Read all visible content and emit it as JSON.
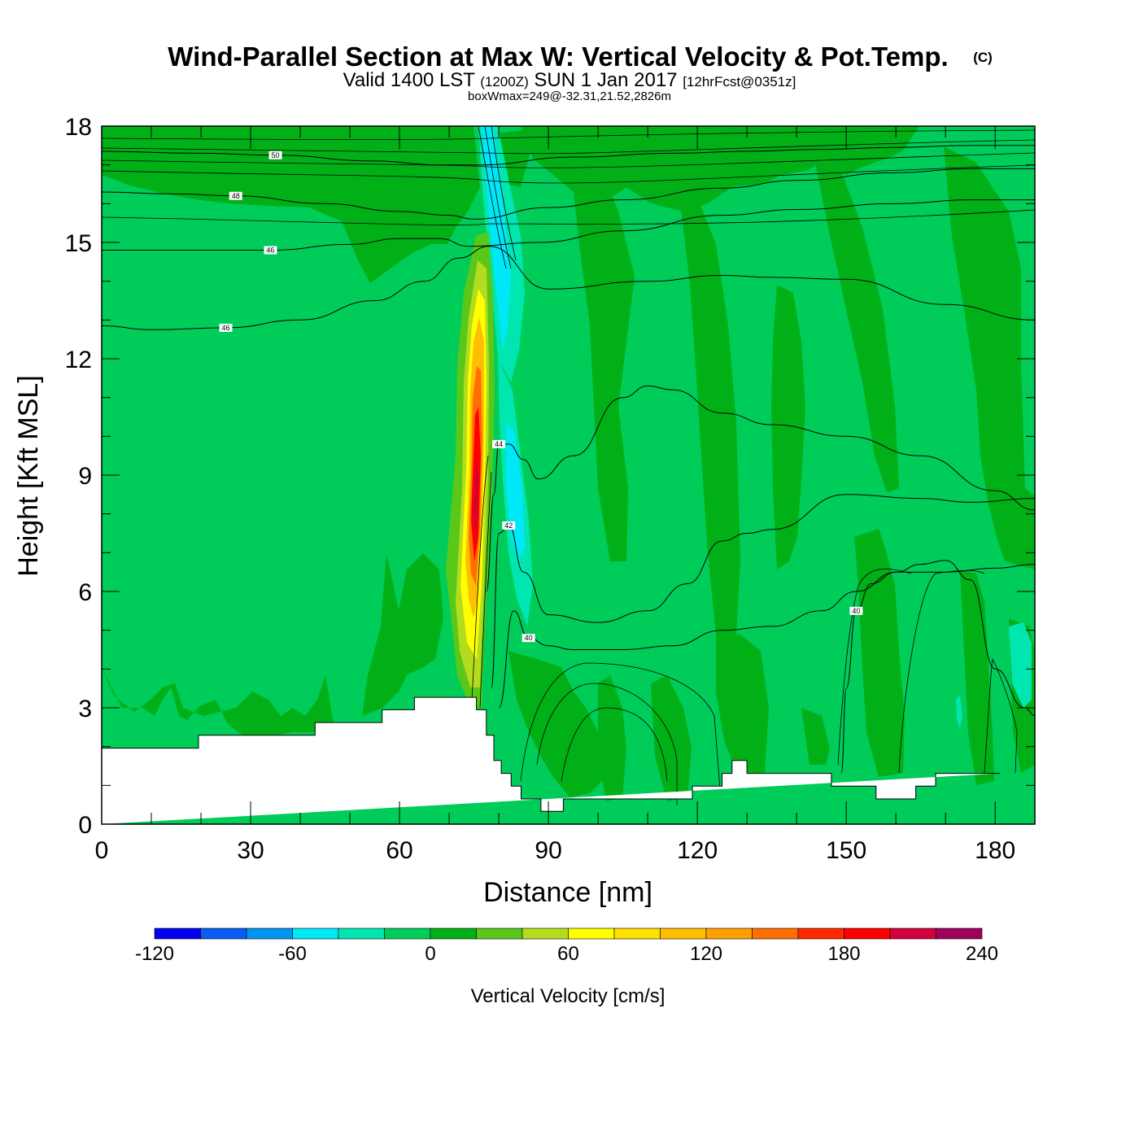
{
  "header": {
    "title": "Wind-Parallel Section at Max W: Vertical Velocity & Pot.Temp.",
    "copyright": "(C)",
    "valid_prefix": "Valid 1400 LST",
    "valid_utc": "(1200Z)",
    "valid_date": "SUN 1 Jan 2017",
    "forecast": "[12hrFcst@0351z]",
    "boxwmax": "boxWmax=249@-32.31,21.52,2826m"
  },
  "chart_data": {
    "type": "contour-cross-section",
    "xlabel": "Distance [nm]",
    "ylabel": "Height [Kft MSL]",
    "xlim": [
      0,
      188
    ],
    "ylim": [
      0,
      18
    ],
    "xticks": [
      0,
      30,
      60,
      90,
      120,
      150,
      180
    ],
    "yticks": [
      0,
      3,
      6,
      9,
      12,
      15,
      18
    ],
    "colorbar": {
      "title": "Vertical Velocity [cm/s]",
      "tick_values": [
        -120,
        -60,
        0,
        60,
        120,
        180,
        240
      ],
      "tick_labels": [
        "-120",
        "-60",
        "0",
        "60",
        "120",
        "180",
        "240"
      ],
      "levels": [
        -120,
        -100,
        -80,
        -60,
        -40,
        -20,
        0,
        20,
        40,
        60,
        80,
        100,
        120,
        140,
        160,
        180,
        200,
        220,
        240
      ],
      "colors": [
        "#0000ee",
        "#0a5cf5",
        "#0096f0",
        "#00e8f8",
        "#00e6b0",
        "#00cc5a",
        "#00b016",
        "#5ac819",
        "#b4dc1e",
        "#ffff00",
        "#ffe000",
        "#ffbe00",
        "#ffa000",
        "#ff6e00",
        "#ff2800",
        "#ff0000",
        "#d2003c",
        "#a0005a"
      ]
    },
    "terrain_kft": {
      "x": [
        0,
        19.5,
        19.5,
        43,
        43,
        56.5,
        56.5,
        63,
        63,
        75.5,
        75.5,
        77.5,
        77.5,
        79,
        79,
        80.5,
        80.5,
        82.5,
        82.5,
        84.5,
        84.5,
        88.5,
        88.5,
        93,
        93,
        119,
        119,
        125,
        125,
        127,
        127,
        130,
        130,
        147,
        147,
        156,
        156,
        164,
        164,
        168,
        168,
        181,
        181,
        188
      ],
      "y": [
        1.96,
        1.96,
        2.29,
        2.29,
        2.62,
        2.62,
        2.95,
        2.95,
        3.27,
        3.27,
        2.95,
        2.95,
        2.29,
        2.29,
        1.64,
        1.64,
        1.31,
        1.31,
        0.98,
        0.98,
        0.65,
        0.65,
        0.33,
        0.33,
        0.65,
        0.65,
        0.98,
        0.98,
        1.31,
        1.31,
        1.64,
        1.64,
        1.31,
        1.31,
        0.98,
        0.98,
        0.65,
        0.65,
        0.98,
        0.98,
        1.31,
        1.31
      ]
    },
    "updraft_core": {
      "peak_cm_s": 249,
      "x_nm": 75.5,
      "height_kft": 9.3
    },
    "theta_contours": [
      {
        "label": "50",
        "x": [
          0,
          20,
          35,
          55,
          68,
          72,
          76,
          95,
          115,
          130,
          145,
          160,
          175,
          188
        ],
        "y": [
          17.35,
          17.3,
          17.25,
          17.1,
          17.0,
          17.0,
          17.0,
          17.2,
          17.3,
          17.35,
          17.4,
          17.45,
          17.5,
          17.5
        ]
      },
      {
        "label": "48",
        "x": [
          0,
          15,
          27,
          45,
          60,
          70,
          75,
          90,
          105,
          125,
          140,
          160,
          175,
          188
        ],
        "y": [
          16.3,
          16.25,
          16.2,
          16.0,
          15.8,
          15.7,
          15.6,
          15.9,
          16.1,
          16.4,
          16.6,
          16.8,
          16.9,
          16.9
        ]
      },
      {
        "label": "46",
        "x": [
          0,
          20,
          34,
          50,
          60,
          68,
          74,
          88,
          105,
          125,
          140,
          160,
          175,
          188
        ],
        "y": [
          14.8,
          14.8,
          14.8,
          14.95,
          15.1,
          15.1,
          14.9,
          15.0,
          15.3,
          15.7,
          15.85,
          16.0,
          16.1,
          16.1
        ]
      },
      {
        "label": "46",
        "x": [
          0,
          10,
          25,
          40,
          55,
          65,
          72,
          78,
          90,
          110,
          125,
          135,
          150,
          170,
          188
        ],
        "y": [
          12.85,
          12.75,
          12.8,
          13.0,
          13.5,
          14.0,
          14.6,
          14.9,
          13.8,
          14.0,
          14.15,
          14.1,
          14.05,
          13.4,
          13.0
        ]
      },
      {
        "label": "44",
        "x": [
          77.5,
          79,
          80,
          82,
          85,
          88,
          95,
          105,
          110,
          115,
          125,
          135,
          150,
          165,
          180,
          188
        ],
        "y": [
          6.0,
          8.5,
          9.8,
          9.8,
          9.4,
          8.9,
          9.5,
          11.0,
          11.3,
          11.2,
          10.6,
          10.3,
          10.0,
          9.5,
          8.6,
          8.1
        ]
      },
      {
        "label": "42",
        "x": [
          78.5,
          80,
          82,
          85,
          90,
          100,
          110,
          118,
          125,
          130,
          135,
          150,
          165,
          175,
          188
        ],
        "y": [
          3.5,
          7.5,
          7.7,
          6.5,
          5.4,
          5.2,
          5.5,
          6.2,
          7.3,
          7.5,
          7.6,
          8.5,
          8.4,
          8.3,
          8.4
        ]
      },
      {
        "label": "40",
        "x": [
          80,
          83,
          86,
          90,
          95,
          105,
          115,
          125,
          135,
          145,
          152,
          160,
          170,
          180,
          188
        ],
        "y": [
          3.0,
          5.5,
          4.8,
          4.6,
          4.5,
          4.5,
          4.6,
          5.0,
          5.1,
          5.5,
          6.0,
          6.5,
          6.5,
          6.6,
          6.7
        ]
      },
      {
        "label": "40",
        "x": [
          149,
          150,
          152,
          155,
          160,
          165,
          170,
          175,
          180,
          186,
          188
        ],
        "y": [
          1.31,
          3.5,
          5.5,
          6.2,
          6.5,
          6.7,
          6.8,
          6.3,
          4.0,
          3.0,
          2.8
        ]
      }
    ]
  }
}
